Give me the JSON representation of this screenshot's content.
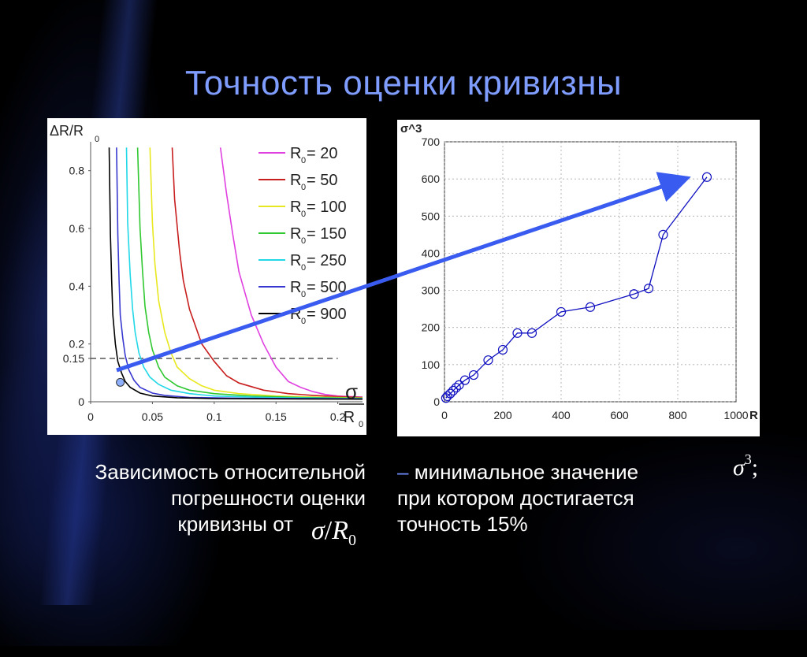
{
  "slide": {
    "title": "Точность оценки кривизны"
  },
  "captions": {
    "left_line1": "Зависимость относительной",
    "left_line2": "погрешности оценки",
    "left_line3": "кривизны от",
    "left_formula_sigma": "σ",
    "left_formula_slash": "/",
    "left_formula_R": "R",
    "left_formula_sub": "0",
    "right_dash": "–",
    "right_line1": "минимальное значение",
    "right_line2": "при котором достигается",
    "right_line3": "точность 15%",
    "right_formula_sigma": "σ",
    "right_formula_sup": "3",
    "right_formula_sep": ";"
  },
  "colors": {
    "title": "#7f9cff",
    "arrow": "#3a5bf0",
    "background": "#000000",
    "caption_text": "#ffffff"
  },
  "chart_data": [
    {
      "type": "line",
      "ylabel": "ΔR/R",
      "ylabel_sub": "0",
      "xlabel_top": "σ",
      "xlabel_bottom": "R",
      "xlabel_bottom_sub": "0",
      "xlim": [
        0,
        0.22
      ],
      "ylim": [
        0,
        0.9
      ],
      "x_ticks": [
        "0",
        "0.05",
        "0.1",
        "0.15",
        "0.2"
      ],
      "x_tick_values": [
        0,
        0.05,
        0.1,
        0.15,
        0.2
      ],
      "y_ticks": [
        "0",
        "0.15",
        "0.2",
        "0.4",
        "0.6",
        "0.8"
      ],
      "y_tick_values": [
        0,
        0.15,
        0.2,
        0.4,
        0.6,
        0.8
      ],
      "reference_line": {
        "y": 0.15,
        "style": "dashed"
      },
      "marker_point": {
        "x": 0.024,
        "y": 0.1
      },
      "legend_position": "top-right",
      "legend_prefix": "R",
      "legend_sub": "0",
      "series": [
        {
          "name": "= 20",
          "color": "#e040e0",
          "x": [
            0.105,
            0.11,
            0.115,
            0.12,
            0.13,
            0.14,
            0.15,
            0.16,
            0.17,
            0.18,
            0.19,
            0.2,
            0.21,
            0.22
          ],
          "y": [
            0.88,
            0.72,
            0.58,
            0.45,
            0.3,
            0.2,
            0.12,
            0.07,
            0.05,
            0.035,
            0.025,
            0.02,
            0.018,
            0.016
          ]
        },
        {
          "name": "= 50",
          "color": "#c81e1e",
          "x": [
            0.066,
            0.068,
            0.072,
            0.075,
            0.08,
            0.09,
            0.1,
            0.11,
            0.12,
            0.14,
            0.16,
            0.18,
            0.2,
            0.22
          ],
          "y": [
            0.88,
            0.7,
            0.52,
            0.42,
            0.32,
            0.2,
            0.14,
            0.09,
            0.065,
            0.04,
            0.028,
            0.022,
            0.018,
            0.015
          ]
        },
        {
          "name": "= 100",
          "color": "#e8e820",
          "x": [
            0.048,
            0.05,
            0.052,
            0.055,
            0.06,
            0.065,
            0.07,
            0.08,
            0.09,
            0.1,
            0.12,
            0.15,
            0.18,
            0.22
          ],
          "y": [
            0.88,
            0.62,
            0.48,
            0.35,
            0.24,
            0.17,
            0.12,
            0.08,
            0.055,
            0.04,
            0.028,
            0.02,
            0.016,
            0.013
          ]
        },
        {
          "name": "= 150",
          "color": "#30c830",
          "x": [
            0.038,
            0.04,
            0.042,
            0.044,
            0.047,
            0.05,
            0.055,
            0.06,
            0.07,
            0.08,
            0.1,
            0.13,
            0.17,
            0.22
          ],
          "y": [
            0.88,
            0.6,
            0.45,
            0.33,
            0.24,
            0.18,
            0.12,
            0.085,
            0.055,
            0.04,
            0.028,
            0.02,
            0.015,
            0.012
          ]
        },
        {
          "name": "= 250",
          "color": "#20d8e8",
          "x": [
            0.029,
            0.03,
            0.032,
            0.034,
            0.036,
            0.039,
            0.043,
            0.048,
            0.055,
            0.065,
            0.08,
            0.1,
            0.15,
            0.22
          ],
          "y": [
            0.88,
            0.62,
            0.44,
            0.32,
            0.24,
            0.17,
            0.12,
            0.085,
            0.06,
            0.04,
            0.028,
            0.02,
            0.014,
            0.011
          ]
        },
        {
          "name": "= 500",
          "color": "#3838d0",
          "x": [
            0.021,
            0.022,
            0.023,
            0.024,
            0.026,
            0.028,
            0.031,
            0.035,
            0.04,
            0.05,
            0.06,
            0.08,
            0.12,
            0.22
          ],
          "y": [
            0.88,
            0.58,
            0.42,
            0.3,
            0.22,
            0.16,
            0.11,
            0.075,
            0.05,
            0.03,
            0.022,
            0.015,
            0.012,
            0.01
          ]
        },
        {
          "name": "= 900",
          "color": "#000000",
          "x": [
            0.015,
            0.016,
            0.017,
            0.018,
            0.02,
            0.022,
            0.025,
            0.028,
            0.032,
            0.04,
            0.05,
            0.07,
            0.1,
            0.22
          ],
          "y": [
            0.88,
            0.58,
            0.42,
            0.3,
            0.2,
            0.14,
            0.1,
            0.07,
            0.05,
            0.03,
            0.02,
            0.014,
            0.011,
            0.009
          ]
        }
      ]
    },
    {
      "type": "line",
      "ylabel": "σ^3",
      "xlabel": "R",
      "xlim": [
        0,
        1000
      ],
      "ylim": [
        0,
        700
      ],
      "x_ticks": [
        "0",
        "200",
        "400",
        "600",
        "800",
        "1000"
      ],
      "x_tick_values": [
        0,
        200,
        400,
        600,
        800,
        1000
      ],
      "y_ticks": [
        "0",
        "100",
        "200",
        "300",
        "400",
        "500",
        "600",
        "700"
      ],
      "y_tick_values": [
        0,
        100,
        200,
        300,
        400,
        500,
        600,
        700
      ],
      "marker": "circle",
      "color": "#1010c0",
      "x": [
        5,
        10,
        20,
        30,
        40,
        50,
        70,
        100,
        150,
        200,
        250,
        300,
        400,
        500,
        650,
        700,
        750,
        900
      ],
      "y": [
        10,
        15,
        22,
        30,
        38,
        45,
        58,
        72,
        112,
        140,
        185,
        185,
        242,
        255,
        290,
        305,
        450,
        605
      ]
    }
  ]
}
